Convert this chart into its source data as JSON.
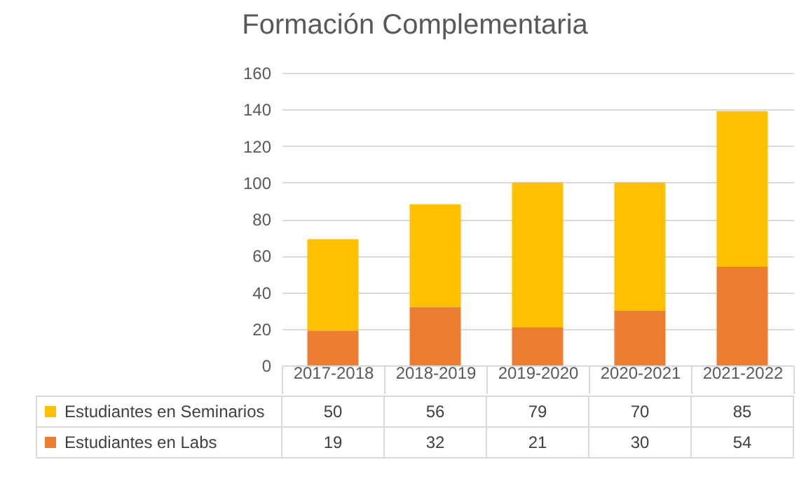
{
  "chart_data": {
    "type": "bar",
    "title": "Formación Complementaria",
    "categories": [
      "2017-2018",
      "2018-2019",
      "2019-2020",
      "2020-2021",
      "2021-2022"
    ],
    "series": [
      {
        "name": "Estudiantes en Labs",
        "color": "#ed7d31",
        "values": [
          19,
          32,
          21,
          30,
          54
        ]
      },
      {
        "name": "Estudiantes en Seminarios",
        "color": "#ffc000",
        "values": [
          50,
          56,
          79,
          70,
          85
        ]
      }
    ],
    "stacked": true,
    "ylim": [
      0,
      160
    ],
    "yticks": [
      0,
      20,
      40,
      60,
      80,
      100,
      120,
      140,
      160
    ],
    "grid": "y",
    "legend": "bottom",
    "data_labels": true
  }
}
